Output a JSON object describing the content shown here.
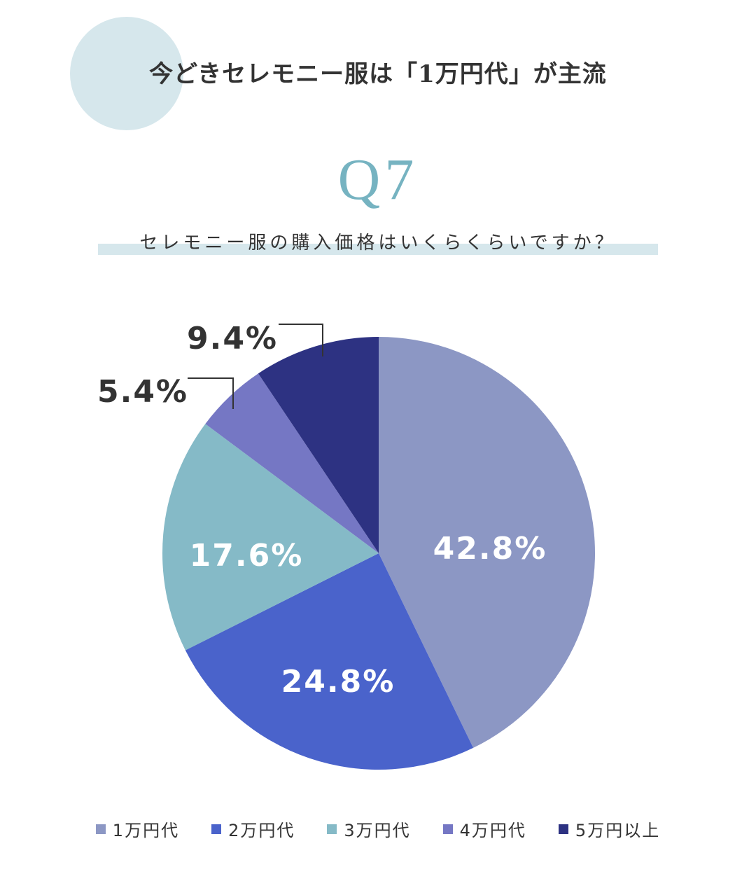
{
  "header": {
    "title": "今どきセレモニー服は「1万円代」が主流"
  },
  "question": {
    "number": "Q7",
    "text": "セレモニー服の購入価格はいくらくらいですか？"
  },
  "chart_data": {
    "type": "pie",
    "categories": [
      "1万円代",
      "2万円代",
      "3万円代",
      "4万円代",
      "5万円以上"
    ],
    "values": [
      42.8,
      24.8,
      17.6,
      5.4,
      9.4
    ],
    "labels": [
      "42.8%",
      "24.8%",
      "17.6%",
      "5.4%",
      "9.4%"
    ],
    "colors": [
      "#8c97c4",
      "#4a63cb",
      "#85bac7",
      "#7577c4",
      "#2d3282"
    ],
    "label_colors": [
      "#ffffff",
      "#ffffff",
      "#ffffff",
      "#333333",
      "#333333"
    ],
    "start_angle": "12 o'clock",
    "direction": "clockwise",
    "legend": "bottom"
  }
}
